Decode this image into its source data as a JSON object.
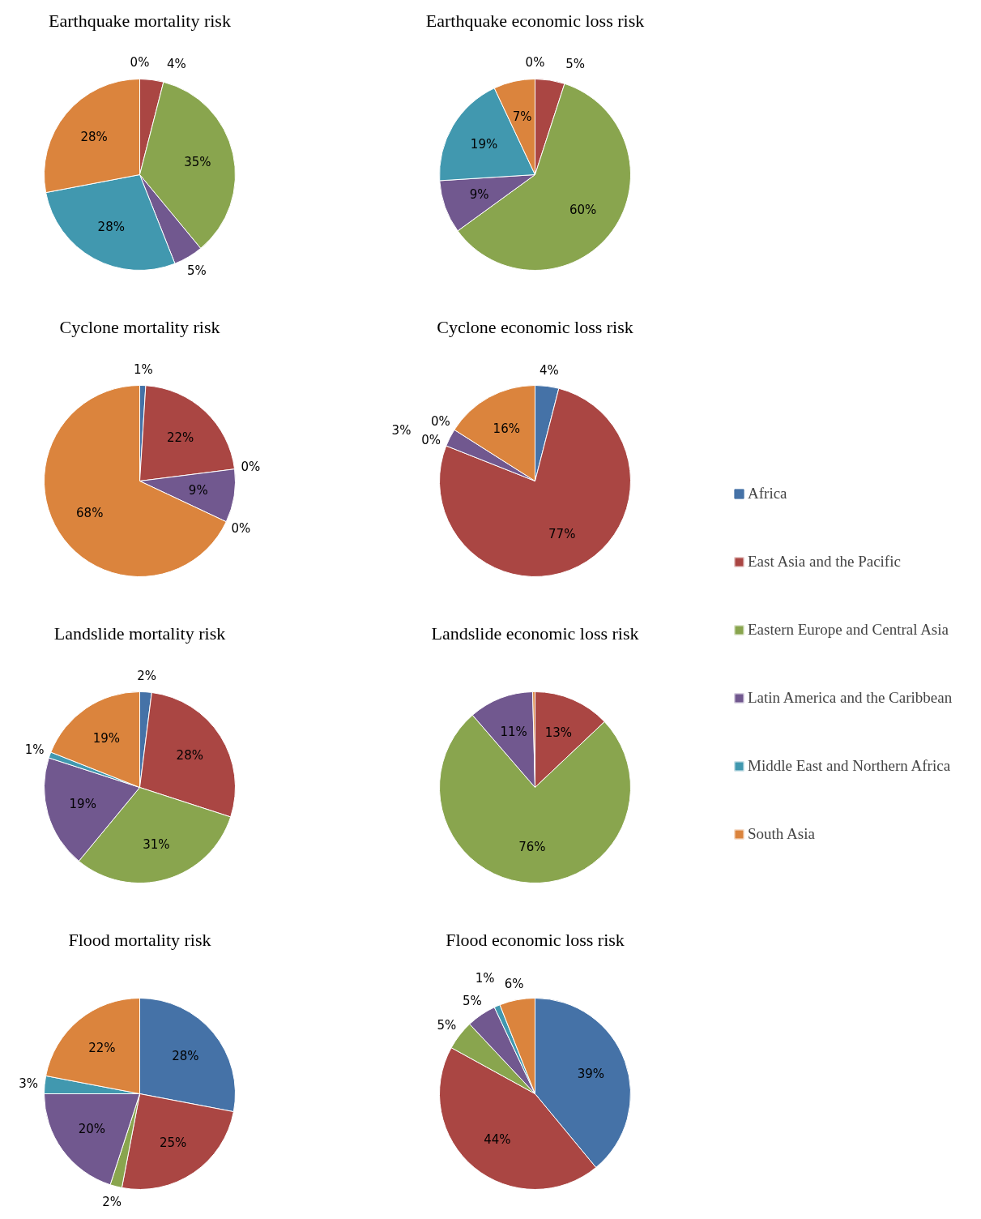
{
  "chart_data": [
    {
      "type": "pie",
      "title": "Earthquake mortality risk",
      "categories": [
        "Africa",
        "East Asia and the Pacific",
        "Eastern Europe and Central Asia",
        "Latin America and the Caribbean",
        "Middle East and Northern Africa",
        "South Asia"
      ],
      "values": [
        0,
        4,
        35,
        5,
        28,
        28
      ],
      "value_labels": [
        "0%",
        "4%",
        "35%",
        "5%",
        "28%",
        "28%"
      ],
      "colors": [
        "#4572a7",
        "#aa4643",
        "#89a54e",
        "#71588f",
        "#4198af",
        "#db843d"
      ],
      "legend": "right"
    },
    {
      "type": "pie",
      "title": "Earthquake economic loss risk",
      "categories": [
        null,
        null,
        null,
        null,
        null,
        null
      ],
      "values": [
        0,
        5,
        60,
        9,
        19,
        7
      ],
      "value_labels": [
        "0%",
        "5%",
        "60%",
        "9%",
        "19%",
        "7%"
      ],
      "colors": [
        "#4572a7",
        "#aa4643",
        "#89a54e",
        "#71588f",
        "#4198af",
        "#db843d"
      ]
    },
    {
      "type": "pie",
      "title": "Cyclone mortality risk",
      "categories": [
        null,
        null,
        null,
        null,
        null,
        null
      ],
      "values": [
        1,
        22,
        0,
        9,
        0,
        68
      ],
      "value_labels": [
        "1%",
        "22%",
        "0%",
        "9%",
        "0%",
        "68%"
      ],
      "colors": [
        "#4572a7",
        "#aa4643",
        "#89a54e",
        "#71588f",
        "#4198af",
        "#db843d"
      ]
    },
    {
      "type": "pie",
      "title": "Cyclone economic loss risk",
      "categories": [
        null,
        null,
        null,
        null,
        null,
        null
      ],
      "values": [
        4,
        77,
        0,
        3,
        0,
        16
      ],
      "value_labels": [
        "4%",
        "77%",
        "0%",
        "3%",
        "0%",
        "16%"
      ],
      "colors": [
        "#4572a7",
        "#aa4643",
        "#89a54e",
        "#71588f",
        "#4198af",
        "#db843d"
      ]
    },
    {
      "type": "pie",
      "title": "Landslide mortality risk",
      "categories": [
        null,
        null,
        null,
        null,
        null,
        null
      ],
      "values": [
        2,
        28,
        31,
        19,
        1,
        19
      ],
      "value_labels": [
        "2%",
        "28%",
        "31%",
        "19%",
        "1%",
        "19%"
      ],
      "colors": [
        "#4572a7",
        "#aa4643",
        "#89a54e",
        "#71588f",
        "#4198af",
        "#db843d"
      ]
    },
    {
      "type": "pie",
      "title": "Landslide economic loss risk",
      "categories": [
        null,
        null,
        null,
        null,
        null,
        null
      ],
      "values": [
        0,
        13,
        76,
        11,
        0,
        0.4
      ],
      "value_labels": [
        null,
        "13%",
        "76%",
        "11%",
        null,
        null
      ],
      "colors": [
        "#4572a7",
        "#aa4643",
        "#89a54e",
        "#71588f",
        "#4198af",
        "#db843d"
      ]
    },
    {
      "type": "pie",
      "title": "Flood mortality risk",
      "categories": [
        null,
        null,
        null,
        null,
        null,
        null
      ],
      "values": [
        28,
        25,
        2,
        20,
        3,
        22
      ],
      "value_labels": [
        "28%",
        "25%",
        "2%",
        "20%",
        "3%",
        "22%"
      ],
      "colors": [
        "#4572a7",
        "#aa4643",
        "#89a54e",
        "#71588f",
        "#4198af",
        "#db843d"
      ]
    },
    {
      "type": "pie",
      "title": "Flood economic loss risk",
      "categories": [
        null,
        null,
        null,
        null,
        null,
        null
      ],
      "values": [
        39,
        44,
        5,
        5,
        1,
        6
      ],
      "value_labels": [
        "39%",
        "44%",
        "5%",
        "5%",
        "1%",
        "6%"
      ],
      "colors": [
        "#4572a7",
        "#aa4643",
        "#89a54e",
        "#71588f",
        "#4198af",
        "#db843d"
      ]
    }
  ]
}
